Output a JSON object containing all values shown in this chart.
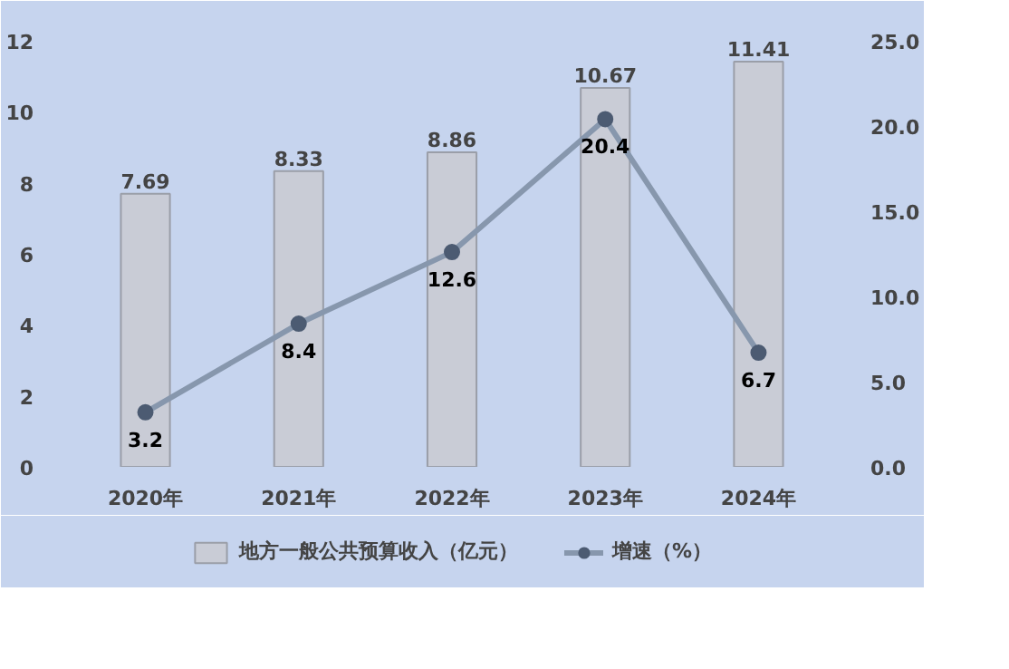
{
  "chart_data": {
    "type": "bar",
    "categories": [
      "2020年",
      "2021年",
      "2022年",
      "2023年",
      "2024年"
    ],
    "series": [
      {
        "name": "地方一般公共预算收入（亿元）",
        "color": "#c9ccd6",
        "values": [
          7.69,
          8.33,
          8.86,
          10.67,
          11.41
        ]
      },
      {
        "name": "增速（%）",
        "type": "line",
        "axis": "y2",
        "color": "#8797ad",
        "values": [
          3.2,
          8.4,
          12.6,
          20.4,
          6.7
        ]
      }
    ],
    "ylim": [
      0,
      12
    ],
    "yticks": [
      0,
      2,
      4,
      6,
      8,
      10,
      12
    ],
    "y2lim": [
      0,
      25
    ],
    "y2ticks": [
      {
        "value": 0,
        "label": "0.0"
      },
      {
        "value": 5,
        "label": "5.0"
      },
      {
        "value": 10,
        "label": "10.0"
      },
      {
        "value": 15,
        "label": "15.0"
      },
      {
        "value": 20,
        "label": "20.0"
      },
      {
        "value": 25,
        "label": "25.0"
      }
    ],
    "data_labels": true,
    "marker": "circle",
    "legend": "bottom",
    "grid": false
  }
}
